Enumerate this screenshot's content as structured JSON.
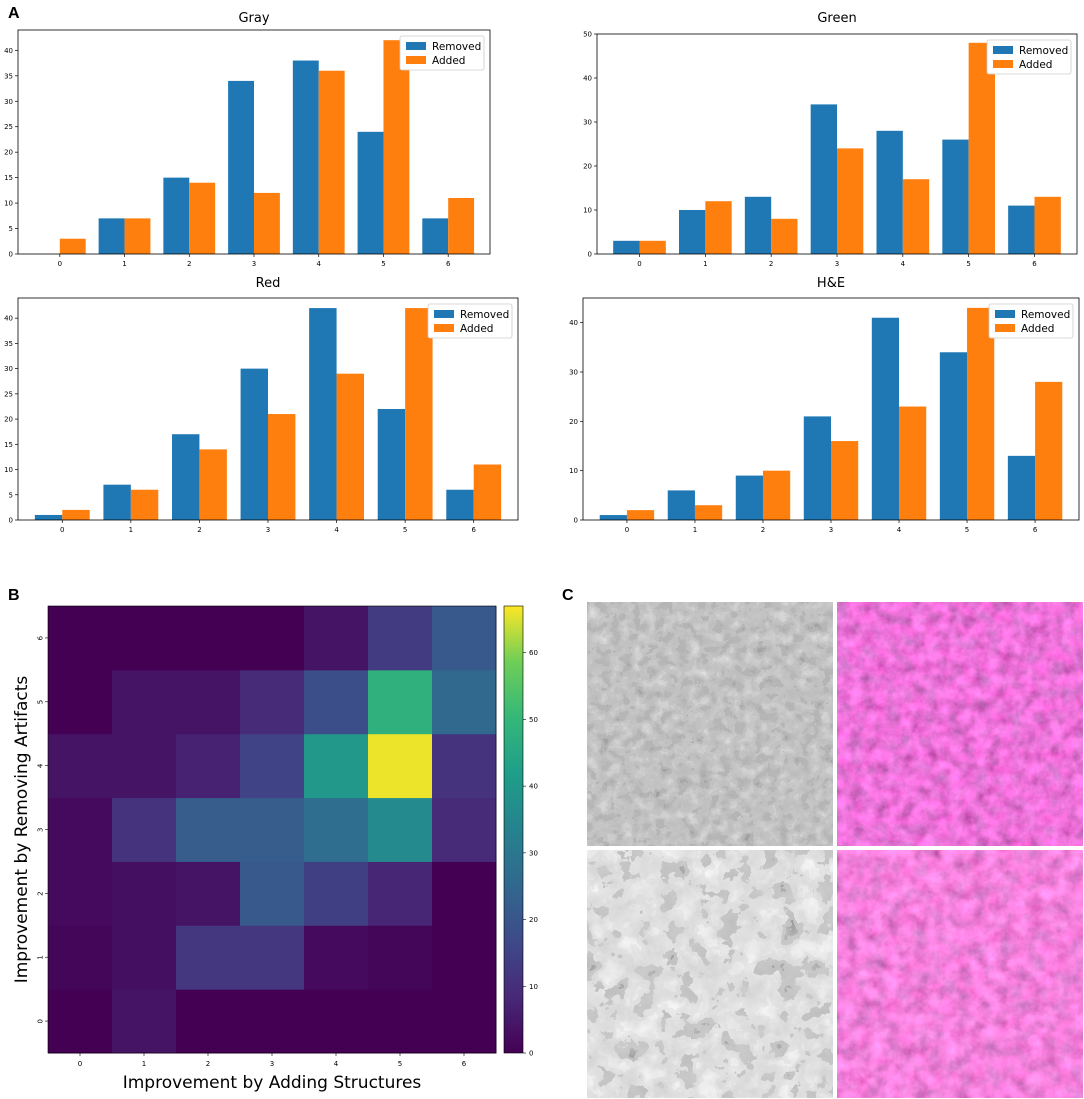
{
  "panel_labels": {
    "a": "A",
    "b": "B",
    "c": "C"
  },
  "chart_data": [
    {
      "type": "bar",
      "title": "Gray",
      "categories": [
        "0",
        "1",
        "2",
        "3",
        "4",
        "5",
        "6"
      ],
      "series": [
        {
          "name": "Removed",
          "color": "#1f77b4",
          "values": [
            0,
            7,
            15,
            34,
            38,
            24,
            7
          ]
        },
        {
          "name": "Added",
          "color": "#ff7f0e",
          "values": [
            3,
            7,
            14,
            12,
            36,
            42,
            11
          ]
        }
      ],
      "ylim": [
        0,
        44
      ],
      "yticks": [
        0,
        5,
        10,
        15,
        20,
        25,
        30,
        35,
        40
      ],
      "legend": "top-right"
    },
    {
      "type": "bar",
      "title": "Green",
      "categories": [
        "0",
        "1",
        "2",
        "3",
        "4",
        "5",
        "6"
      ],
      "series": [
        {
          "name": "Removed",
          "color": "#1f77b4",
          "values": [
            3,
            10,
            13,
            34,
            28,
            26,
            11
          ]
        },
        {
          "name": "Added",
          "color": "#ff7f0e",
          "values": [
            3,
            12,
            8,
            24,
            17,
            48,
            13
          ]
        }
      ],
      "ylim": [
        0,
        50
      ],
      "yticks": [
        0,
        10,
        20,
        30,
        40,
        50
      ],
      "legend": "top-right"
    },
    {
      "type": "bar",
      "title": "Red",
      "categories": [
        "0",
        "1",
        "2",
        "3",
        "4",
        "5",
        "6"
      ],
      "series": [
        {
          "name": "Removed",
          "color": "#1f77b4",
          "values": [
            1,
            7,
            17,
            30,
            42,
            22,
            6
          ]
        },
        {
          "name": "Added",
          "color": "#ff7f0e",
          "values": [
            2,
            6,
            14,
            21,
            29,
            42,
            11
          ]
        }
      ],
      "ylim": [
        0,
        44
      ],
      "yticks": [
        0,
        5,
        10,
        15,
        20,
        25,
        30,
        35,
        40
      ],
      "legend": "top-right"
    },
    {
      "type": "bar",
      "title": "H&E",
      "categories": [
        "0",
        "1",
        "2",
        "3",
        "4",
        "5",
        "6"
      ],
      "series": [
        {
          "name": "Removed",
          "color": "#1f77b4",
          "values": [
            1,
            6,
            9,
            21,
            41,
            34,
            13
          ]
        },
        {
          "name": "Added",
          "color": "#ff7f0e",
          "values": [
            2,
            3,
            10,
            16,
            23,
            43,
            28
          ]
        }
      ],
      "ylim": [
        0,
        45
      ],
      "yticks": [
        0,
        10,
        20,
        30,
        40
      ],
      "legend": "top-right"
    },
    {
      "type": "heatmap",
      "title": "",
      "xlabel": "Improvement by Adding Structures",
      "ylabel": "Improvement by Removing Artifacts",
      "x": [
        "0",
        "1",
        "2",
        "3",
        "4",
        "5",
        "6"
      ],
      "y": [
        "0",
        "1",
        "2",
        "3",
        "4",
        "5",
        "6"
      ],
      "values": [
        [
          0,
          4,
          0,
          0,
          0,
          0,
          0
        ],
        [
          1,
          3,
          12,
          12,
          2,
          1,
          0
        ],
        [
          2,
          3,
          4,
          21,
          14,
          8,
          0
        ],
        [
          2,
          11,
          22,
          22,
          27,
          36,
          9
        ],
        [
          4,
          4,
          7,
          15,
          40,
          66,
          11
        ],
        [
          0,
          4,
          4,
          9,
          18,
          48,
          25
        ],
        [
          0,
          0,
          0,
          0,
          4,
          13,
          21
        ]
      ],
      "colorbar": {
        "min": 0,
        "max": 67,
        "ticks": [
          0,
          10,
          20,
          30,
          40,
          50,
          60
        ]
      }
    }
  ]
}
